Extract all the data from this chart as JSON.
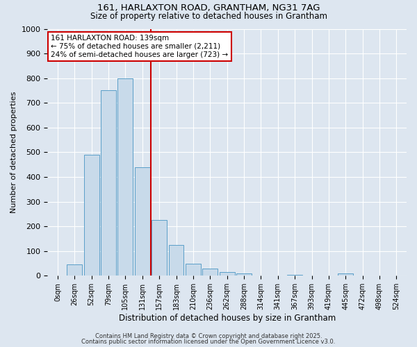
{
  "title1": "161, HARLAXTON ROAD, GRANTHAM, NG31 7AG",
  "title2": "Size of property relative to detached houses in Grantham",
  "xlabel": "Distribution of detached houses by size in Grantham",
  "ylabel": "Number of detached properties",
  "bar_labels": [
    "0sqm",
    "26sqm",
    "52sqm",
    "79sqm",
    "105sqm",
    "131sqm",
    "157sqm",
    "183sqm",
    "210sqm",
    "236sqm",
    "262sqm",
    "288sqm",
    "314sqm",
    "341sqm",
    "367sqm",
    "393sqm",
    "419sqm",
    "445sqm",
    "472sqm",
    "498sqm",
    "524sqm"
  ],
  "bar_values": [
    0,
    45,
    490,
    750,
    800,
    440,
    225,
    125,
    50,
    28,
    15,
    10,
    0,
    0,
    5,
    0,
    0,
    10,
    0,
    0,
    0
  ],
  "bar_color": "#c8daea",
  "bar_edge_color": "#5a9fc8",
  "vline_pos": 5.5,
  "vline_color": "#cc0000",
  "annotation_text": "161 HARLAXTON ROAD: 139sqm\n← 75% of detached houses are smaller (2,211)\n24% of semi-detached houses are larger (723) →",
  "annotation_box_color": "#ffffff",
  "annotation_edge_color": "#cc0000",
  "ylim": [
    0,
    1000
  ],
  "yticks": [
    0,
    100,
    200,
    300,
    400,
    500,
    600,
    700,
    800,
    900,
    1000
  ],
  "bg_color": "#dde6f0",
  "grid_color": "#ffffff",
  "footer1": "Contains HM Land Registry data © Crown copyright and database right 2025.",
  "footer2": "Contains public sector information licensed under the Open Government Licence v3.0."
}
